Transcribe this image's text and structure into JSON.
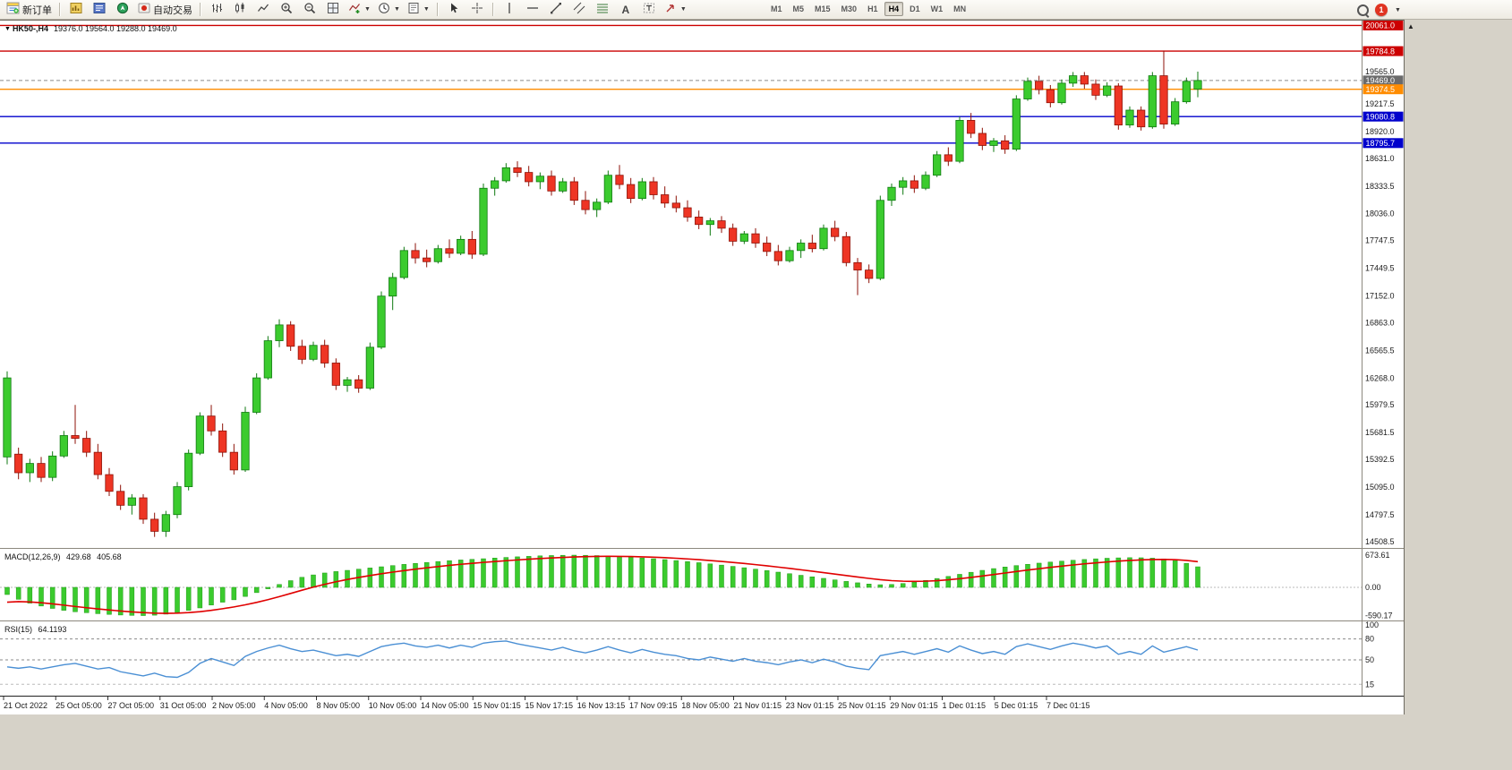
{
  "toolbar": {
    "new_order_label": "新订单",
    "autotrading_label": "自动交易",
    "timeframes": [
      "M1",
      "M5",
      "M15",
      "M30",
      "H1",
      "H4",
      "D1",
      "W1",
      "MN"
    ],
    "active_timeframe": "H4",
    "notification_count": "1"
  },
  "chart": {
    "symbol_period": "HK50-,H4",
    "ohlc": "19376.0 19564.0 19288.0 19469.0"
  },
  "chart_data": {
    "type": "candlestick",
    "symbol": "HK50-",
    "period": "H4",
    "colors": {
      "up": "#3bcb2e",
      "up_stroke": "#0f7a10",
      "down": "#ee3524",
      "down_stroke": "#8e1208",
      "macd_hist": "#3bcb2e",
      "macd_signal": "#e00000",
      "rsi": "#4a8fd4",
      "line_red": "#cc0000",
      "line_orange": "#ff8c00",
      "line_blue": "#0000cc",
      "current_badge": "#6b6b6b"
    },
    "candles": [
      [
        15420,
        16340,
        15340,
        16270
      ],
      [
        15450,
        15520,
        15180,
        15250
      ],
      [
        15250,
        15400,
        15150,
        15350
      ],
      [
        15350,
        15420,
        15150,
        15200
      ],
      [
        15200,
        15480,
        15160,
        15430
      ],
      [
        15430,
        15700,
        15410,
        15650
      ],
      [
        15650,
        15980,
        15560,
        15620
      ],
      [
        15620,
        15700,
        15420,
        15470
      ],
      [
        15470,
        15560,
        15180,
        15230
      ],
      [
        15230,
        15300,
        15000,
        15050
      ],
      [
        15050,
        15120,
        14850,
        14900
      ],
      [
        14900,
        15020,
        14800,
        14980
      ],
      [
        14980,
        15020,
        14700,
        14750
      ],
      [
        14750,
        14820,
        14560,
        14620
      ],
      [
        14620,
        14840,
        14560,
        14800
      ],
      [
        14800,
        15150,
        14760,
        15100
      ],
      [
        15100,
        15500,
        15060,
        15460
      ],
      [
        15460,
        15900,
        15440,
        15860
      ],
      [
        15860,
        15980,
        15650,
        15700
      ],
      [
        15700,
        15780,
        15420,
        15470
      ],
      [
        15470,
        15560,
        15230,
        15280
      ],
      [
        15280,
        15960,
        15260,
        15900
      ],
      [
        15900,
        16320,
        15880,
        16270
      ],
      [
        16270,
        16720,
        16250,
        16670
      ],
      [
        16670,
        16900,
        16600,
        16840
      ],
      [
        16840,
        16880,
        16560,
        16610
      ],
      [
        16610,
        16680,
        16420,
        16470
      ],
      [
        16470,
        16660,
        16450,
        16620
      ],
      [
        16620,
        16680,
        16380,
        16430
      ],
      [
        16430,
        16480,
        16140,
        16190
      ],
      [
        16190,
        16280,
        16120,
        16250
      ],
      [
        16250,
        16300,
        16110,
        16160
      ],
      [
        16160,
        16650,
        16140,
        16600
      ],
      [
        16600,
        17200,
        16580,
        17150
      ],
      [
        17150,
        17400,
        17000,
        17350
      ],
      [
        17350,
        17680,
        17330,
        17640
      ],
      [
        17640,
        17720,
        17500,
        17560
      ],
      [
        17560,
        17650,
        17460,
        17520
      ],
      [
        17520,
        17700,
        17500,
        17660
      ],
      [
        17660,
        17760,
        17560,
        17610
      ],
      [
        17610,
        17800,
        17590,
        17760
      ],
      [
        17760,
        17850,
        17550,
        17600
      ],
      [
        17600,
        18360,
        17580,
        18310
      ],
      [
        18310,
        18430,
        18230,
        18390
      ],
      [
        18390,
        18580,
        18370,
        18530
      ],
      [
        18530,
        18600,
        18430,
        18480
      ],
      [
        18480,
        18550,
        18330,
        18380
      ],
      [
        18380,
        18480,
        18300,
        18440
      ],
      [
        18440,
        18500,
        18230,
        18280
      ],
      [
        18280,
        18420,
        18260,
        18380
      ],
      [
        18380,
        18430,
        18130,
        18180
      ],
      [
        18180,
        18280,
        18030,
        18080
      ],
      [
        18080,
        18200,
        18000,
        18160
      ],
      [
        18160,
        18500,
        18140,
        18450
      ],
      [
        18450,
        18560,
        18300,
        18350
      ],
      [
        18350,
        18420,
        18150,
        18200
      ],
      [
        18200,
        18420,
        18180,
        18380
      ],
      [
        18380,
        18430,
        18190,
        18240
      ],
      [
        18240,
        18330,
        18100,
        18150
      ],
      [
        18150,
        18230,
        18050,
        18100
      ],
      [
        18100,
        18180,
        17950,
        18000
      ],
      [
        18000,
        18070,
        17870,
        17920
      ],
      [
        17920,
        17990,
        17800,
        17960
      ],
      [
        17960,
        18010,
        17830,
        17880
      ],
      [
        17880,
        17930,
        17690,
        17740
      ],
      [
        17740,
        17850,
        17710,
        17820
      ],
      [
        17820,
        17880,
        17670,
        17720
      ],
      [
        17720,
        17790,
        17580,
        17630
      ],
      [
        17630,
        17700,
        17480,
        17530
      ],
      [
        17530,
        17680,
        17510,
        17640
      ],
      [
        17640,
        17760,
        17560,
        17720
      ],
      [
        17720,
        17810,
        17620,
        17660
      ],
      [
        17660,
        17920,
        17640,
        17880
      ],
      [
        17880,
        17960,
        17740,
        17790
      ],
      [
        17790,
        17840,
        17470,
        17510
      ],
      [
        17510,
        17560,
        17160,
        17430
      ],
      [
        17430,
        17490,
        17290,
        17340
      ],
      [
        17340,
        18230,
        17320,
        18180
      ],
      [
        18180,
        18360,
        18120,
        18320
      ],
      [
        18320,
        18430,
        18240,
        18390
      ],
      [
        18390,
        18450,
        18260,
        18310
      ],
      [
        18310,
        18490,
        18290,
        18450
      ],
      [
        18450,
        18710,
        18430,
        18670
      ],
      [
        18670,
        18750,
        18550,
        18600
      ],
      [
        18600,
        19080,
        18580,
        19040
      ],
      [
        19040,
        19120,
        18850,
        18900
      ],
      [
        18900,
        18960,
        18720,
        18770
      ],
      [
        18770,
        18850,
        18700,
        18820
      ],
      [
        18820,
        18880,
        18680,
        18730
      ],
      [
        18730,
        19310,
        18710,
        19270
      ],
      [
        19270,
        19500,
        19250,
        19460
      ],
      [
        19460,
        19520,
        19320,
        19370
      ],
      [
        19370,
        19420,
        19180,
        19230
      ],
      [
        19230,
        19480,
        19210,
        19440
      ],
      [
        19440,
        19560,
        19400,
        19520
      ],
      [
        19520,
        19560,
        19380,
        19430
      ],
      [
        19430,
        19480,
        19260,
        19310
      ],
      [
        19310,
        19450,
        19290,
        19410
      ],
      [
        19410,
        19440,
        18940,
        18990
      ],
      [
        18990,
        19190,
        18960,
        19150
      ],
      [
        19150,
        19190,
        18930,
        18970
      ],
      [
        18970,
        19560,
        18950,
        19520
      ],
      [
        19520,
        19790,
        18950,
        19000
      ],
      [
        19000,
        19280,
        18980,
        19240
      ],
      [
        19240,
        19500,
        19220,
        19460
      ],
      [
        19376,
        19564,
        19288,
        19469
      ]
    ],
    "hlines": [
      {
        "price": 20061.0,
        "label": "20061.0",
        "color": "#cc0000",
        "style": "solid"
      },
      {
        "price": 19784.8,
        "label": "19784.8",
        "color": "#cc0000",
        "style": "solid"
      },
      {
        "price": 19469.0,
        "label": "19469.0",
        "color": "#8a8a8a",
        "style": "dash",
        "badge": "#6b6b6b"
      },
      {
        "price": 19374.5,
        "label": "19374.5",
        "color": "#ff8c00",
        "style": "solid"
      },
      {
        "price": 19080.8,
        "label": "19080.8",
        "color": "#0000cc",
        "style": "solid"
      },
      {
        "price": 18795.7,
        "label": "18795.7",
        "color": "#0000cc",
        "style": "solid"
      }
    ],
    "current_price": "19469.0",
    "price_scale": [
      "19565.0",
      "19217.5",
      "18920.0",
      "18631.0",
      "18333.5",
      "18036.0",
      "17747.5",
      "17449.5",
      "17152.0",
      "16863.0",
      "16565.5",
      "16268.0",
      "15979.5",
      "15681.5",
      "15392.5",
      "15095.0",
      "14797.5",
      "14508.5"
    ],
    "time_labels": [
      "21 Oct 2022",
      "25 Oct 05:00",
      "27 Oct 05:00",
      "31 Oct 05:00",
      "2 Nov 05:00",
      "4 Nov 05:00",
      "8 Nov 05:00",
      "10 Nov 05:00",
      "14 Nov 05:00",
      "15 Nov 01:15",
      "15 Nov 17:15",
      "16 Nov 13:15",
      "17 Nov 09:15",
      "18 Nov 05:00",
      "21 Nov 01:15",
      "23 Nov 01:15",
      "25 Nov 01:15",
      "29 Nov 01:15",
      "1 Dec 01:15",
      "5 Dec 01:15",
      "7 Dec 01:15"
    ],
    "macd": {
      "label": "MACD(12,26,9)",
      "main_value": "429.68",
      "signal_value": "405.68",
      "scale_labels": [
        "673.61",
        "0.00",
        "-590.17"
      ],
      "histogram": [
        -150,
        -250,
        -330,
        -390,
        -440,
        -480,
        -510,
        -530,
        -550,
        -565,
        -578,
        -586,
        -590,
        -582,
        -560,
        -525,
        -480,
        -430,
        -370,
        -310,
        -260,
        -190,
        -110,
        -30,
        60,
        140,
        210,
        260,
        300,
        330,
        355,
        380,
        405,
        430,
        455,
        480,
        500,
        520,
        540,
        558,
        572,
        585,
        598,
        612,
        625,
        638,
        648,
        658,
        665,
        670,
        673,
        670,
        664,
        655,
        644,
        630,
        615,
        598,
        580,
        560,
        538,
        515,
        490,
        465,
        438,
        410,
        380,
        350,
        318,
        285,
        252,
        220,
        188,
        156,
        124,
        95,
        70,
        55,
        60,
        80,
        110,
        145,
        185,
        228,
        272,
        315,
        355,
        392,
        425,
        455,
        482,
        506,
        528,
        548,
        566,
        582,
        596,
        608,
        616,
        620,
        618,
        610,
        595,
        560,
        500,
        429.68
      ]
    },
    "rsi": {
      "label": "RSI(15)",
      "value": "64.1193",
      "scale_labels": [
        "100",
        "80",
        "50",
        "15"
      ],
      "levels": [
        80,
        50,
        15
      ],
      "values": [
        40,
        38,
        40,
        37,
        40,
        43,
        45,
        41,
        37,
        39,
        33,
        30,
        27,
        31,
        26,
        25,
        32,
        45,
        52,
        47,
        42,
        55,
        62,
        67,
        71,
        66,
        62,
        64,
        60,
        56,
        58,
        55,
        62,
        69,
        72,
        74,
        70,
        68,
        71,
        67,
        71,
        68,
        74,
        76,
        77,
        73,
        70,
        67,
        64,
        68,
        63,
        60,
        64,
        69,
        64,
        60,
        65,
        61,
        58,
        56,
        52,
        50,
        54,
        51,
        48,
        52,
        48,
        46,
        43,
        47,
        50,
        46,
        51,
        47,
        41,
        38,
        36,
        56,
        59,
        62,
        58,
        62,
        66,
        61,
        70,
        64,
        59,
        62,
        58,
        69,
        73,
        69,
        65,
        70,
        74,
        71,
        67,
        70,
        58,
        62,
        58,
        70,
        61,
        65,
        69,
        64.12
      ]
    }
  }
}
